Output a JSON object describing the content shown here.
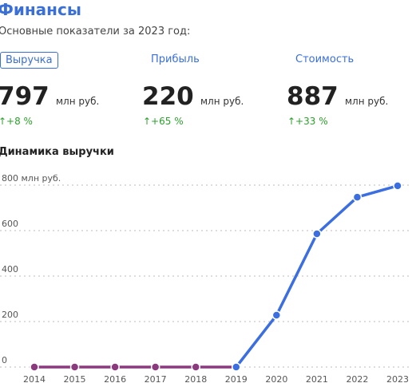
{
  "header": {
    "title": "Финансы",
    "subtitle": "Основные показатели за 2023 год:"
  },
  "metrics": [
    {
      "label": "Выручка",
      "value": 797,
      "unit": "млн руб.",
      "change": "↑+8 %"
    },
    {
      "label": "Прибыль",
      "value": 220,
      "unit": "млн руб.",
      "change": "↑+65 %"
    },
    {
      "label": "Стоимость",
      "value": 887,
      "unit": "млн руб.",
      "change": "↑+33 %"
    }
  ],
  "section_title": "Динамика выручки",
  "chart_data": {
    "type": "line",
    "categories": [
      "2014",
      "2015",
      "2016",
      "2017",
      "2018",
      "2019",
      "2020",
      "2021",
      "2022",
      "2023"
    ],
    "series": [
      {
        "color": "#8b3a7e",
        "values": [
          0,
          0,
          0,
          0,
          0,
          0,
          null,
          null,
          null,
          null
        ]
      },
      {
        "color": "#3b6ee0",
        "values": [
          null,
          null,
          null,
          null,
          null,
          0,
          228,
          586,
          747,
          797
        ]
      }
    ],
    "ylim": [
      0,
      800
    ],
    "yticks": [
      0,
      200,
      400,
      600,
      {
        "value": 800,
        "label": "800 млн руб."
      }
    ],
    "grid": true
  }
}
